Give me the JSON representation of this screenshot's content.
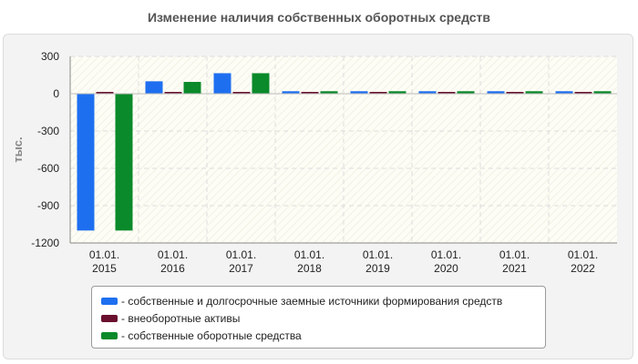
{
  "chart_data": {
    "type": "bar",
    "title": "Изменение наличия собственных оборотных средств",
    "ylabel": "тыс.",
    "xlabel": "",
    "categories": [
      [
        "01.01.",
        "2015"
      ],
      [
        "01.01.",
        "2016"
      ],
      [
        "01.01.",
        "2017"
      ],
      [
        "01.01.",
        "2018"
      ],
      [
        "01.01.",
        "2019"
      ],
      [
        "01.01.",
        "2020"
      ],
      [
        "01.01.",
        "2021"
      ],
      [
        "01.01.",
        "2022"
      ]
    ],
    "ylim": [
      -1200,
      300
    ],
    "yticks": [
      300,
      0,
      -300,
      -600,
      -900,
      -1200
    ],
    "ytick_labels": [
      "300",
      "0",
      "-300",
      "-600",
      "-900",
      "-1200"
    ],
    "grid": true,
    "legend_position": "bottom",
    "series": [
      {
        "name": "- собственные и долгосрочные заемные источники формирования средств",
        "color": "#1e6ff0",
        "values": [
          -1100,
          100,
          165,
          20,
          20,
          20,
          20,
          20
        ]
      },
      {
        "name": "- внеоборотные активы",
        "color": "#6a0f2e",
        "values": [
          10,
          10,
          10,
          10,
          10,
          10,
          10,
          10
        ]
      },
      {
        "name": "- собственные оборотные средства",
        "color": "#0a8a2a",
        "values": [
          -1100,
          95,
          165,
          20,
          20,
          20,
          20,
          20
        ]
      }
    ]
  }
}
